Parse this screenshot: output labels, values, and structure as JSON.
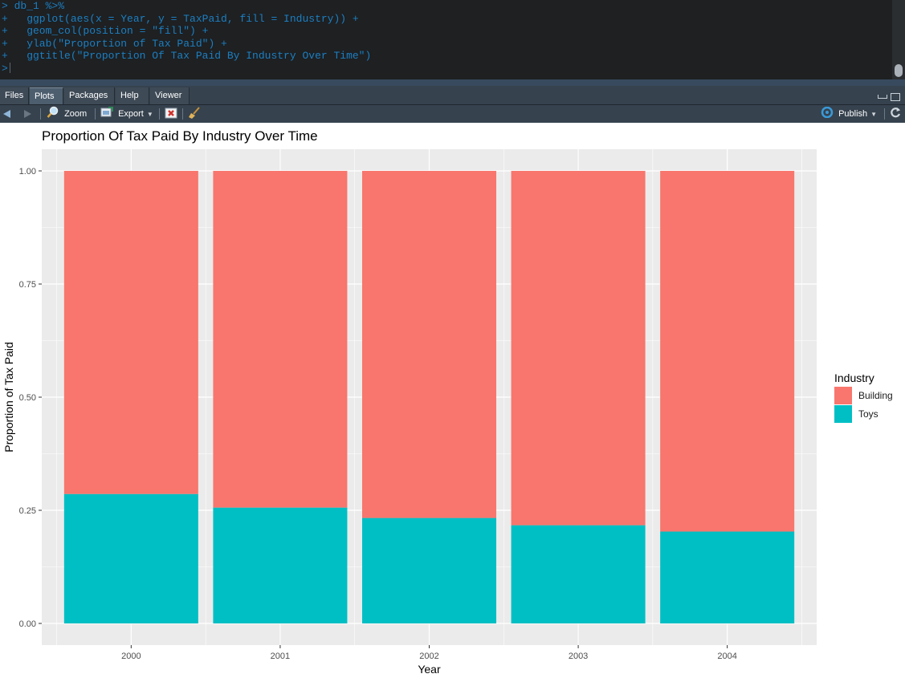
{
  "console": {
    "lines": [
      "> db_1 %>%",
      "+   ggplot(aes(x = Year, y = TaxPaid, fill = Industry)) +",
      "+   geom_col(position = \"fill\") +",
      "+   ylab(\"Proportion of Tax Paid\") +",
      "+   ggtitle(\"Proportion Of Tax Paid By Industry Over Time\")",
      ">"
    ]
  },
  "tabs": [
    {
      "label": "Files",
      "active": false
    },
    {
      "label": "Plots",
      "active": true
    },
    {
      "label": "Packages",
      "active": false
    },
    {
      "label": "Help",
      "active": false
    },
    {
      "label": "Viewer",
      "active": false
    }
  ],
  "toolbar": {
    "back_icon": "arrow-left-icon",
    "forward_icon": "arrow-right-icon",
    "zoom_label": "Zoom",
    "export_label": "Export",
    "remove_icon": "remove-plot-icon",
    "clear_icon": "broom-icon",
    "publish_label": "Publish",
    "refresh_icon": "refresh-icon"
  },
  "colors": {
    "building": "#F8766D",
    "toys": "#00BFC4",
    "panel_bg": "#EBEBEB",
    "console_text": "#1C7FC2"
  },
  "chart_data": {
    "type": "bar",
    "stacked": true,
    "title": "Proportion Of Tax Paid By Industry Over Time",
    "xlabel": "Year",
    "ylabel": "Proportion of Tax Paid",
    "categories": [
      "2000",
      "2001",
      "2002",
      "2003",
      "2004"
    ],
    "yticks": [
      "0.00",
      "0.25",
      "0.50",
      "0.75",
      "1.00"
    ],
    "ylim": [
      0,
      1
    ],
    "grid": true,
    "legend_title": "Industry",
    "legend_position": "right",
    "series": [
      {
        "name": "Toys",
        "values": [
          0.286,
          0.256,
          0.233,
          0.217,
          0.203
        ]
      },
      {
        "name": "Building",
        "values": [
          0.714,
          0.744,
          0.767,
          0.783,
          0.797
        ]
      }
    ]
  }
}
